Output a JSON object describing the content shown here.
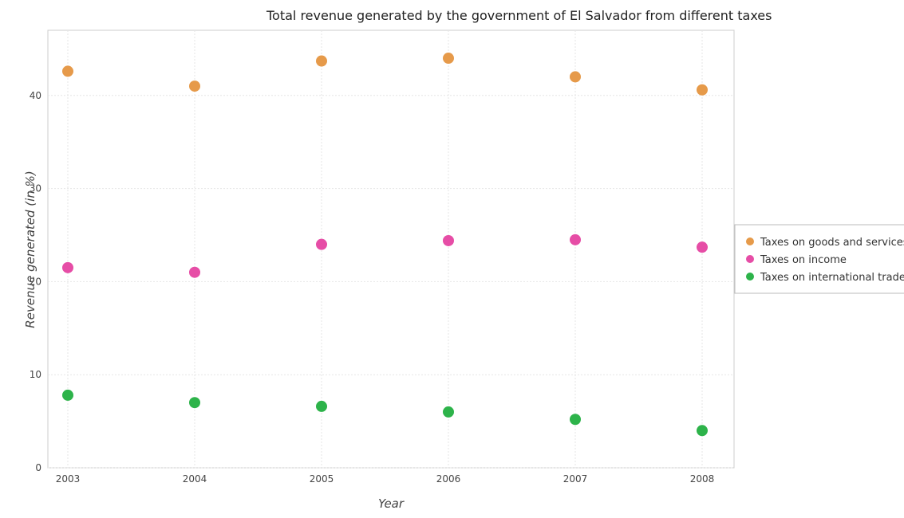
{
  "chart_data": {
    "type": "scatter",
    "title": "Total revenue generated by the government of El Salvador from different taxes",
    "xlabel": "Year",
    "ylabel": "Revenue generated (in %)",
    "x": [
      "2003",
      "2004",
      "2005",
      "2006",
      "2007",
      "2008"
    ],
    "ylim": [
      0,
      47
    ],
    "yticks": [
      0,
      10,
      20,
      30,
      40
    ],
    "grid": true,
    "legend_position": "right",
    "series": [
      {
        "name": "Taxes on goods and services",
        "color": "#e69a4a",
        "values": [
          42.6,
          41.0,
          43.7,
          44.0,
          42.0,
          40.6
        ]
      },
      {
        "name": "Taxes on income",
        "color": "#e64da6",
        "values": [
          21.5,
          21.0,
          24.0,
          24.4,
          24.5,
          23.7
        ]
      },
      {
        "name": "Taxes on international trade",
        "color": "#2db34a",
        "values": [
          7.8,
          7.0,
          6.6,
          6.0,
          5.2,
          4.0
        ]
      }
    ]
  }
}
